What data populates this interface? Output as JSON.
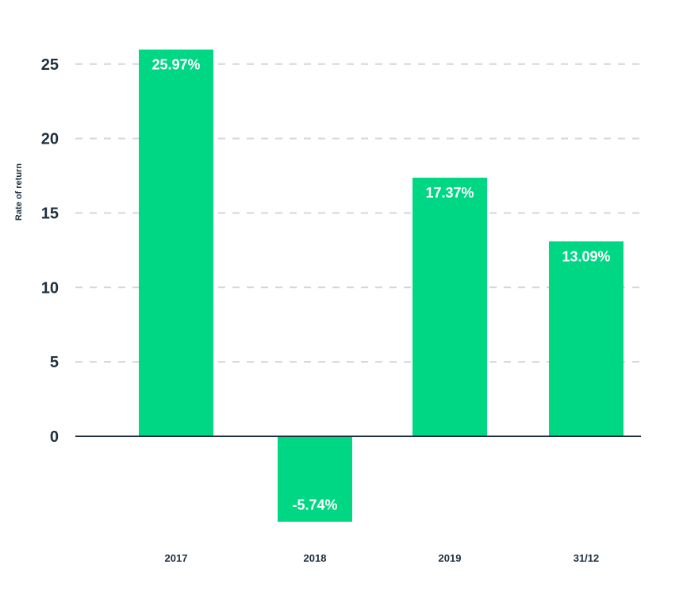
{
  "chart_data": {
    "type": "bar",
    "categories": [
      "2017",
      "2018",
      "2019",
      "31/12"
    ],
    "values": [
      25.97,
      -5.74,
      17.37,
      13.09
    ],
    "data_labels": [
      "25.97%",
      "-5.74%",
      "17.37%",
      "13.09%"
    ],
    "ylabel": "Rate of return",
    "ylim": [
      -6,
      26
    ],
    "yticks": [
      0,
      5,
      10,
      15,
      20,
      25
    ],
    "ytick_labels": [
      "0",
      "5",
      "10",
      "15",
      "20",
      "25"
    ],
    "grid": "dashed horizontal",
    "colors": {
      "bar": "#00d784",
      "grid": "#d3d7da",
      "axis": "#1e2f3d",
      "text": "#1e2f3d",
      "data_label": "#ffffff"
    }
  }
}
